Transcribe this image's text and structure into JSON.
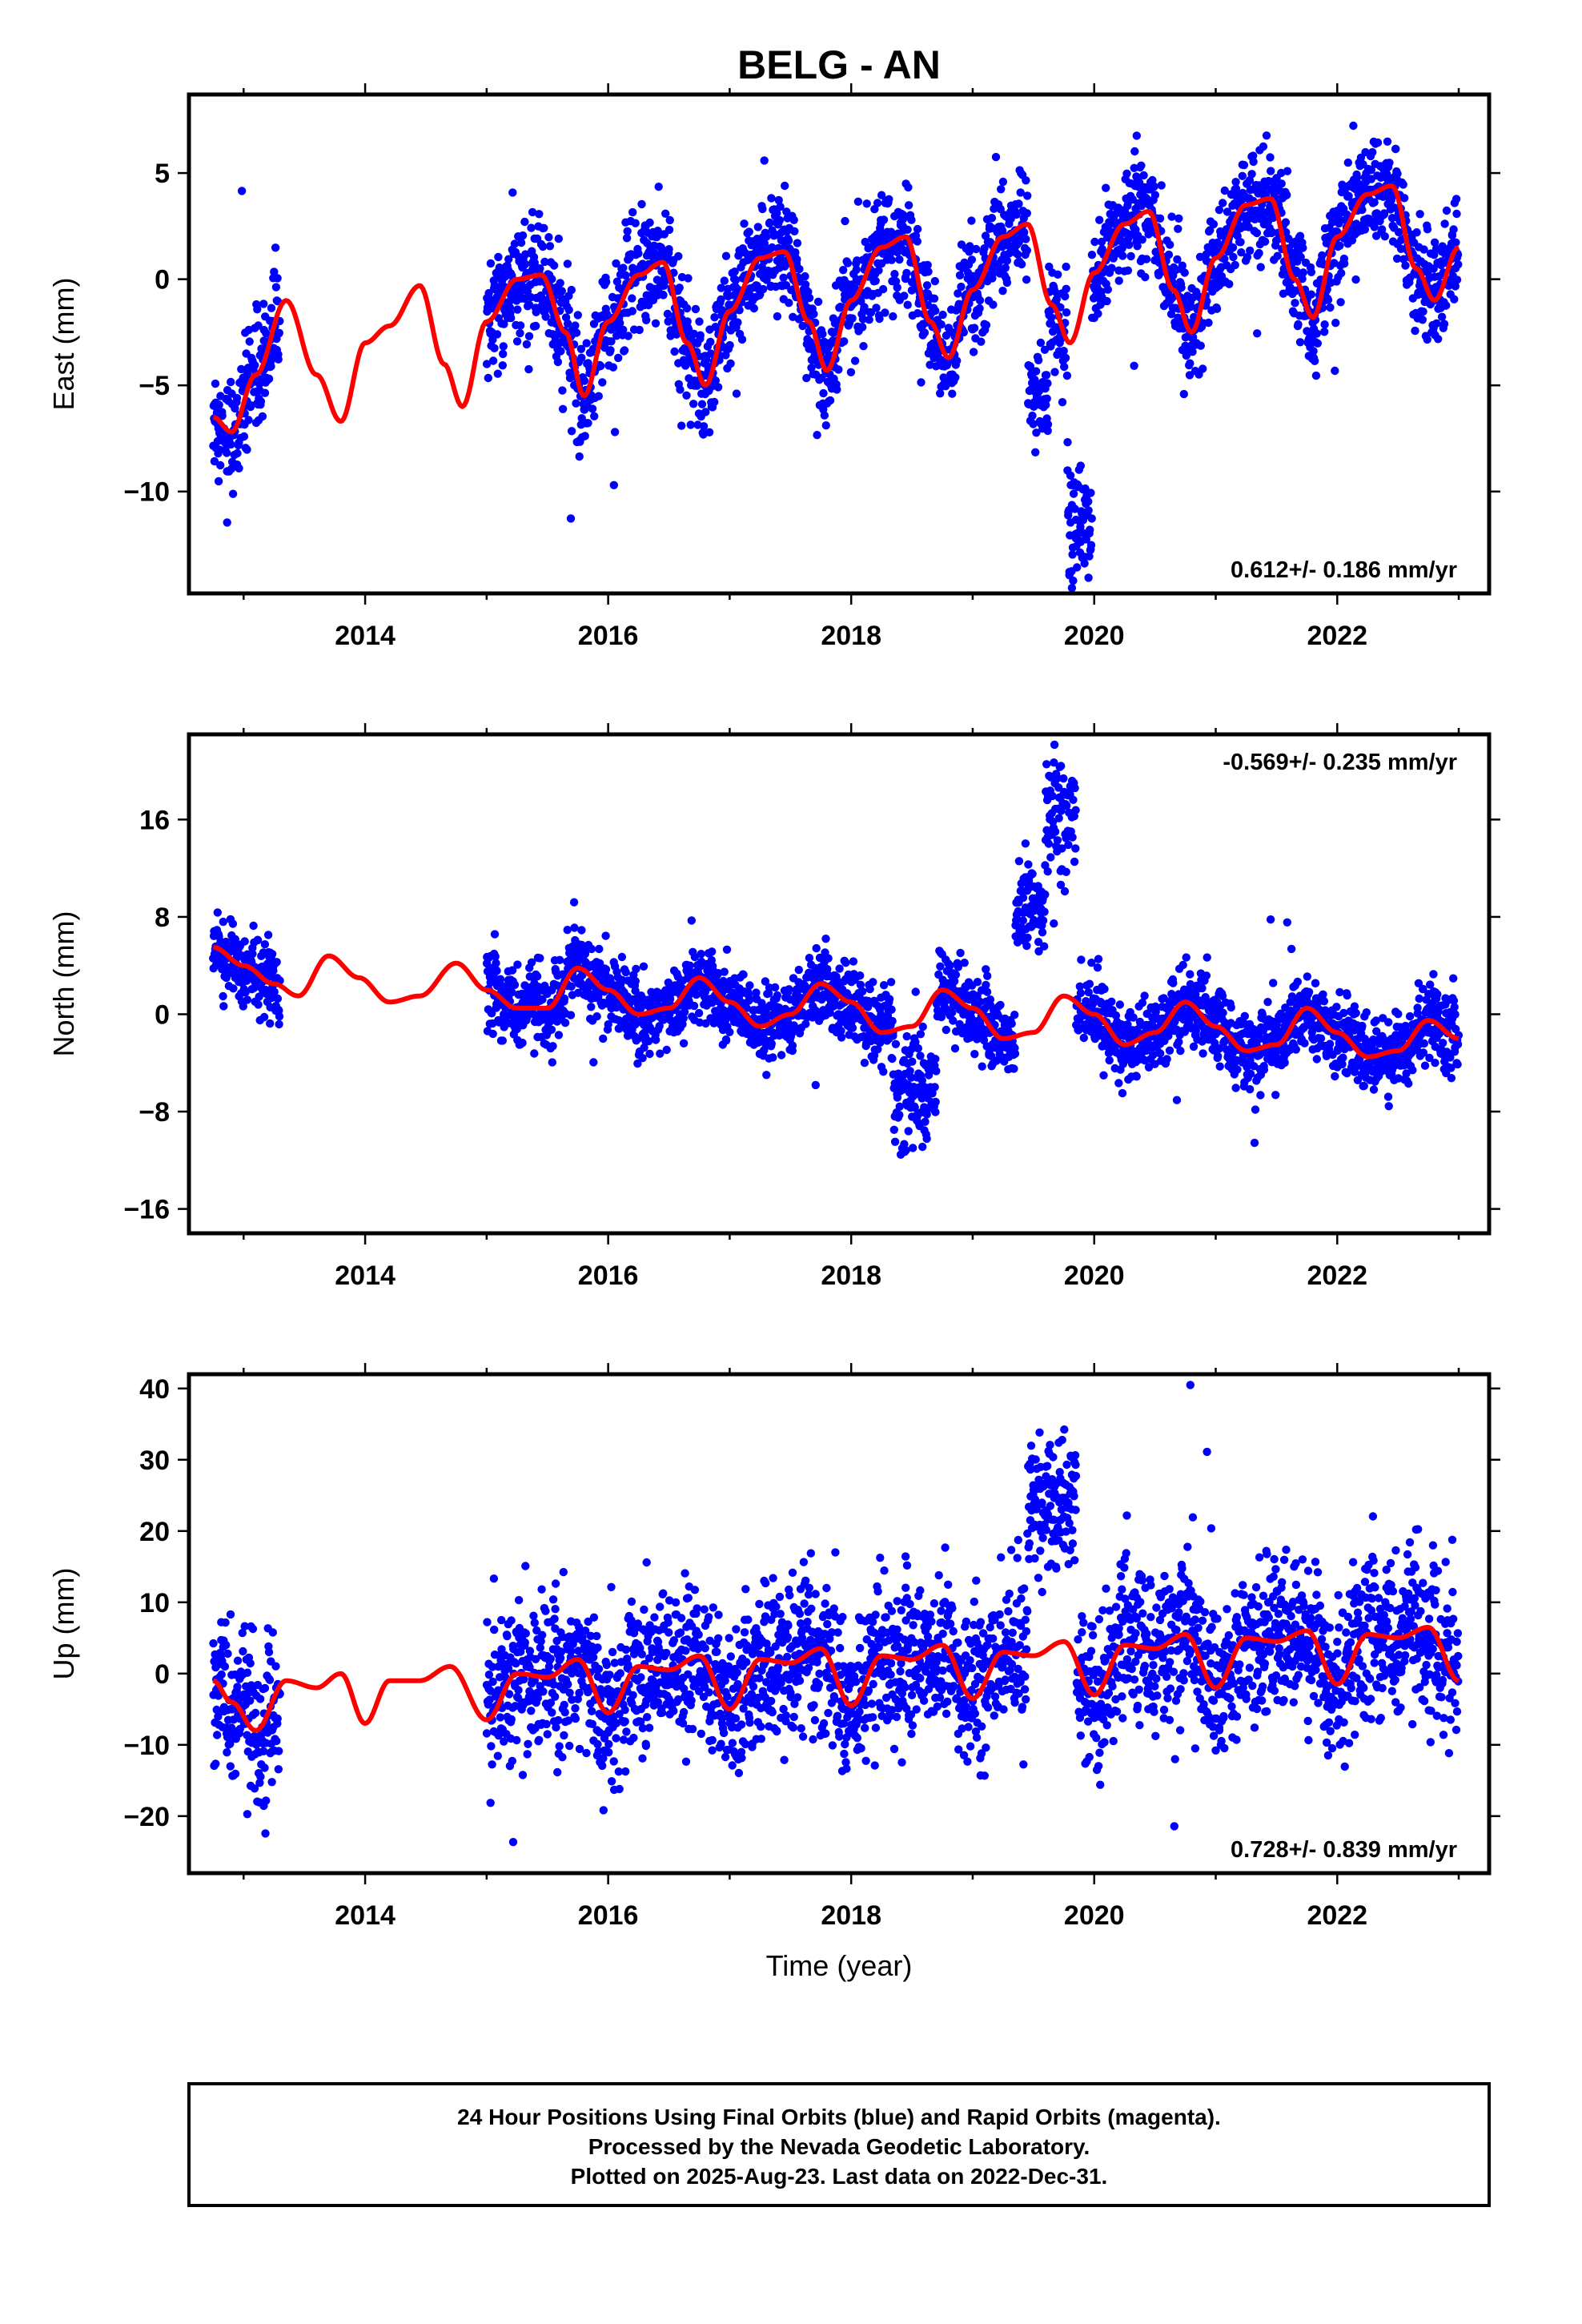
{
  "title": "BELG - AN",
  "footer": {
    "lines": [
      "24 Hour Positions Using Final Orbits (blue) and Rapid Orbits (magenta).",
      "Processed by the Nevada Geodetic Laboratory.",
      "Plotted on 2025-Aug-23. Last data on 2022-Dec-31."
    ]
  },
  "colors": {
    "observations": "#0000ff",
    "model": "#ff0000",
    "frame": "#000000"
  },
  "chart_data": [
    {
      "type": "scatter",
      "ylabel": "East (mm)",
      "xlabel": "",
      "xlim": [
        2012.55,
        2023.25
      ],
      "ylim": [
        -14.8,
        8.7
      ],
      "yticks": [
        -10,
        -5,
        0,
        5
      ],
      "ytick_labels": [
        "−10",
        "−5",
        "0",
        "5"
      ],
      "xticks": [
        2014,
        2016,
        2018,
        2020,
        2022
      ],
      "xtick_labels": [
        "2014",
        "2016",
        "2018",
        "2020",
        "2022"
      ],
      "rate_text": "0.612+/- 0.186 mm/yr",
      "rate_position": "bottom-right",
      "series": [
        {
          "kind": "observations",
          "segments": [
            [
              2012.75,
              2013.3
            ],
            [
              2015.0,
              2023.0
            ]
          ],
          "approx_scatter_mm": 1.3,
          "outlier_clusters": [
            {
              "x": [
                2019.45,
                2019.62
              ],
              "y_center": -5.5,
              "spread": 1.0
            },
            {
              "x": [
                2019.78,
                2019.98
              ],
              "y_center": -11.5,
              "spread": 1.6
            }
          ]
        },
        {
          "kind": "model",
          "x": [
            2012.75,
            2012.9,
            2013.1,
            2013.35,
            2013.6,
            2013.8,
            2014.0,
            2014.2,
            2014.45,
            2014.65,
            2014.8,
            2015.0,
            2015.25,
            2015.45,
            2015.65,
            2015.8,
            2016.0,
            2016.25,
            2016.45,
            2016.65,
            2016.8,
            2017.0,
            2017.25,
            2017.45,
            2017.65,
            2017.8,
            2018.0,
            2018.25,
            2018.45,
            2018.65,
            2018.8,
            2019.0,
            2019.25,
            2019.45,
            2019.65,
            2019.8,
            2020.0,
            2020.25,
            2020.45,
            2020.65,
            2020.8,
            2021.0,
            2021.25,
            2021.45,
            2021.65,
            2021.8,
            2022.0,
            2022.25,
            2022.45,
            2022.65,
            2022.8,
            2023.0
          ],
          "y": [
            -6.5,
            -7.2,
            -4.5,
            -1.0,
            -4.5,
            -6.7,
            -3.0,
            -2.2,
            -0.3,
            -4.0,
            -6.0,
            -2.0,
            0.0,
            0.2,
            -2.5,
            -5.5,
            -2.0,
            0.2,
            0.8,
            -3.0,
            -5.0,
            -1.5,
            1.0,
            1.3,
            -2.0,
            -4.3,
            -1.0,
            1.5,
            2.0,
            -2.0,
            -3.7,
            -0.5,
            2.0,
            2.6,
            -1.2,
            -3.0,
            0.3,
            2.6,
            3.2,
            -0.5,
            -2.5,
            1.0,
            3.5,
            3.8,
            0.0,
            -1.8,
            2.0,
            4.0,
            4.4,
            0.5,
            -1.0,
            1.5
          ]
        }
      ]
    },
    {
      "type": "scatter",
      "ylabel": "North (mm)",
      "xlabel": "",
      "xlim": [
        2012.55,
        2023.25
      ],
      "ylim": [
        -18,
        23
      ],
      "yticks": [
        -16,
        -8,
        0,
        8,
        16
      ],
      "ytick_labels": [
        "−16",
        "−8",
        "0",
        "8",
        "16"
      ],
      "xticks": [
        2014,
        2016,
        2018,
        2020,
        2022
      ],
      "xtick_labels": [
        "2014",
        "2016",
        "2018",
        "2020",
        "2022"
      ],
      "rate_text": "-0.569+/- 0.235 mm/yr",
      "rate_position": "top-right",
      "series": [
        {
          "kind": "observations",
          "segments": [
            [
              2012.75,
              2013.3
            ],
            [
              2015.0,
              2023.0
            ]
          ],
          "approx_scatter_mm": 1.6,
          "outlier_clusters": [
            {
              "x": [
                2018.35,
                2018.7
              ],
              "y_center": -6.0,
              "spread": 2.5
            },
            {
              "x": [
                2019.35,
                2019.6
              ],
              "y_center": 9.0,
              "spread": 2.0
            },
            {
              "x": [
                2019.6,
                2019.85
              ],
              "y_center": 16.0,
              "spread": 2.5
            }
          ]
        },
        {
          "kind": "model",
          "x": [
            2012.75,
            2013.0,
            2013.25,
            2013.45,
            2013.7,
            2013.95,
            2014.2,
            2014.45,
            2014.75,
            2015.0,
            2015.25,
            2015.5,
            2015.75,
            2016.0,
            2016.25,
            2016.5,
            2016.75,
            2017.0,
            2017.25,
            2017.5,
            2017.75,
            2018.0,
            2018.25,
            2018.5,
            2018.75,
            2019.0,
            2019.25,
            2019.5,
            2019.75,
            2020.0,
            2020.25,
            2020.5,
            2020.75,
            2021.0,
            2021.25,
            2021.5,
            2021.75,
            2022.0,
            2022.25,
            2022.5,
            2022.75,
            2023.0
          ],
          "y": [
            5.5,
            4.0,
            2.5,
            1.5,
            4.8,
            3.0,
            1.0,
            1.5,
            4.2,
            2.0,
            0.5,
            0.5,
            3.8,
            2.0,
            0.0,
            0.5,
            3.0,
            1.0,
            -1.0,
            0.0,
            2.5,
            1.0,
            -1.5,
            -1.0,
            2.0,
            0.5,
            -2.0,
            -1.5,
            1.5,
            0.0,
            -2.5,
            -1.5,
            1.0,
            -1.0,
            -3.0,
            -2.5,
            0.5,
            -1.5,
            -3.5,
            -3.0,
            -0.5,
            -2.0
          ]
        }
      ]
    },
    {
      "type": "scatter",
      "ylabel": "Up (mm)",
      "xlabel": "Time (year)",
      "xlim": [
        2012.55,
        2023.25
      ],
      "ylim": [
        -28,
        42
      ],
      "yticks": [
        -20,
        -10,
        0,
        10,
        20,
        30,
        40
      ],
      "ytick_labels": [
        "−20",
        "−10",
        "0",
        "10",
        "20",
        "30",
        "40"
      ],
      "xticks": [
        2014,
        2016,
        2018,
        2020,
        2022
      ],
      "xtick_labels": [
        "2014",
        "2016",
        "2018",
        "2020",
        "2022"
      ],
      "rate_text": "0.728+/- 0.839 mm/yr",
      "rate_position": "bottom-right",
      "series": [
        {
          "kind": "observations",
          "segments": [
            [
              2012.75,
              2013.3
            ],
            [
              2015.0,
              2023.0
            ]
          ],
          "approx_scatter_mm": 5.5,
          "outlier_clusters": [
            {
              "x": [
                2019.45,
                2019.85
              ],
              "y_center": 24.0,
              "spread": 5.0
            }
          ]
        },
        {
          "kind": "model",
          "x": [
            2012.75,
            2012.9,
            2013.1,
            2013.35,
            2013.6,
            2013.8,
            2014.0,
            2014.2,
            2014.45,
            2014.7,
            2015.0,
            2015.25,
            2015.5,
            2015.75,
            2016.0,
            2016.25,
            2016.5,
            2016.75,
            2017.0,
            2017.25,
            2017.5,
            2017.75,
            2018.0,
            2018.25,
            2018.5,
            2018.75,
            2019.0,
            2019.25,
            2019.5,
            2019.75,
            2020.0,
            2020.25,
            2020.5,
            2020.75,
            2021.0,
            2021.25,
            2021.5,
            2021.75,
            2022.0,
            2022.25,
            2022.5,
            2022.75,
            2023.0
          ],
          "y": [
            -1.0,
            -4.0,
            -8.0,
            -1.0,
            -2.0,
            0.0,
            -7.0,
            -1.0,
            -1.0,
            1.0,
            -6.5,
            0.0,
            -0.5,
            2.0,
            -5.5,
            1.0,
            0.5,
            2.5,
            -5.0,
            2.0,
            1.5,
            3.5,
            -4.5,
            2.5,
            2.0,
            4.0,
            -3.5,
            3.0,
            2.5,
            4.5,
            -3.0,
            4.0,
            3.5,
            5.5,
            -2.0,
            5.0,
            4.5,
            6.0,
            -1.5,
            5.5,
            5.0,
            6.5,
            -1.0
          ]
        }
      ]
    }
  ]
}
